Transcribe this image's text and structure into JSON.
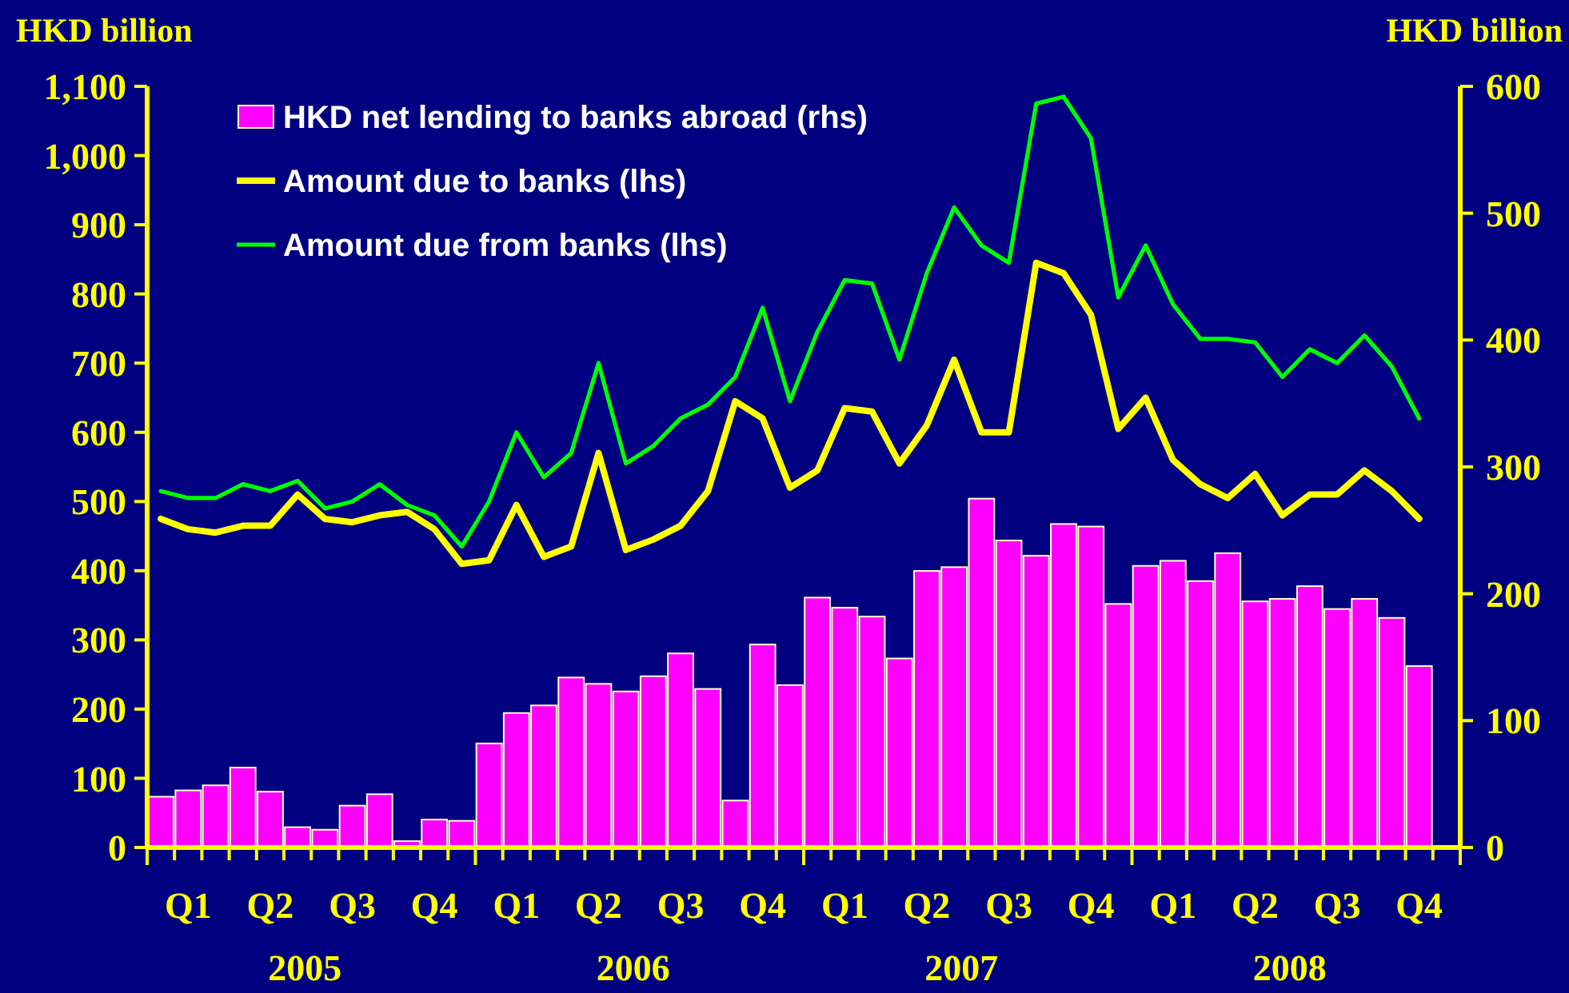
{
  "chart_data": {
    "type": "bar",
    "ylabel": "HKD billion",
    "y2label": "HKD billion",
    "legend": "top left",
    "categories": [
      null,
      "Q1",
      null,
      null,
      "Q2",
      null,
      null,
      "Q3",
      null,
      null,
      "Q4",
      null,
      null,
      "Q1",
      null,
      null,
      "Q2",
      null,
      null,
      "Q3",
      null,
      null,
      "Q4",
      null,
      null,
      "Q1",
      null,
      null,
      "Q2",
      null,
      null,
      "Q3",
      null,
      null,
      "Q4",
      null,
      null,
      "Q1",
      null,
      null,
      "Q2",
      null,
      null,
      "Q3",
      null,
      null,
      "Q4",
      null
    ],
    "annotations": [
      "2005",
      "2006",
      "2007",
      "2008"
    ],
    "ylim": [
      0,
      1100
    ],
    "yticks": [
      0,
      100,
      200,
      300,
      400,
      500,
      600,
      700,
      800,
      900,
      {
        "value": 1000,
        "label": "1,000"
      },
      {
        "value": 1100,
        "label": "1,100"
      }
    ],
    "y2lim": [
      0,
      600
    ],
    "y2ticks": [
      0,
      100,
      200,
      300,
      400,
      500,
      600
    ],
    "series": [
      {
        "name": "HKD net lending to banks abroad (rhs)",
        "axis": "y2",
        "color": "#ff00ff",
        "values": [
          40,
          45,
          49,
          63,
          44,
          16,
          14,
          33,
          42,
          5,
          22,
          21,
          82,
          106,
          112,
          134,
          129,
          123,
          135,
          153,
          125,
          37,
          160,
          128,
          197,
          189,
          182,
          149,
          218,
          221,
          275,
          242,
          230,
          255,
          253,
          192,
          222,
          226,
          210,
          232,
          194,
          196,
          206,
          188,
          196,
          181,
          143,
          null
        ]
      },
      {
        "name": "Amount due to banks (lhs)",
        "type": "line",
        "color": "#ffff00",
        "values": [
          475,
          460,
          455,
          465,
          465,
          510,
          475,
          470,
          480,
          485,
          460,
          410,
          415,
          495,
          420,
          435,
          570,
          430,
          445,
          465,
          515,
          645,
          620,
          520,
          545,
          635,
          630,
          555,
          610,
          705,
          600,
          600,
          845,
          830,
          770,
          605,
          650,
          560,
          525,
          505,
          540,
          480,
          510,
          510,
          545,
          515,
          475,
          null
        ]
      },
      {
        "name": "Amount due from banks (lhs)",
        "type": "line",
        "color": "#00ff00",
        "values": [
          515,
          505,
          505,
          525,
          515,
          530,
          490,
          500,
          525,
          495,
          480,
          435,
          500,
          600,
          535,
          570,
          700,
          555,
          580,
          620,
          640,
          680,
          780,
          645,
          745,
          820,
          815,
          705,
          830,
          925,
          870,
          845,
          1075,
          1085,
          1025,
          795,
          870,
          785,
          735,
          735,
          730,
          680,
          720,
          700,
          740,
          695,
          620,
          null
        ]
      }
    ]
  }
}
